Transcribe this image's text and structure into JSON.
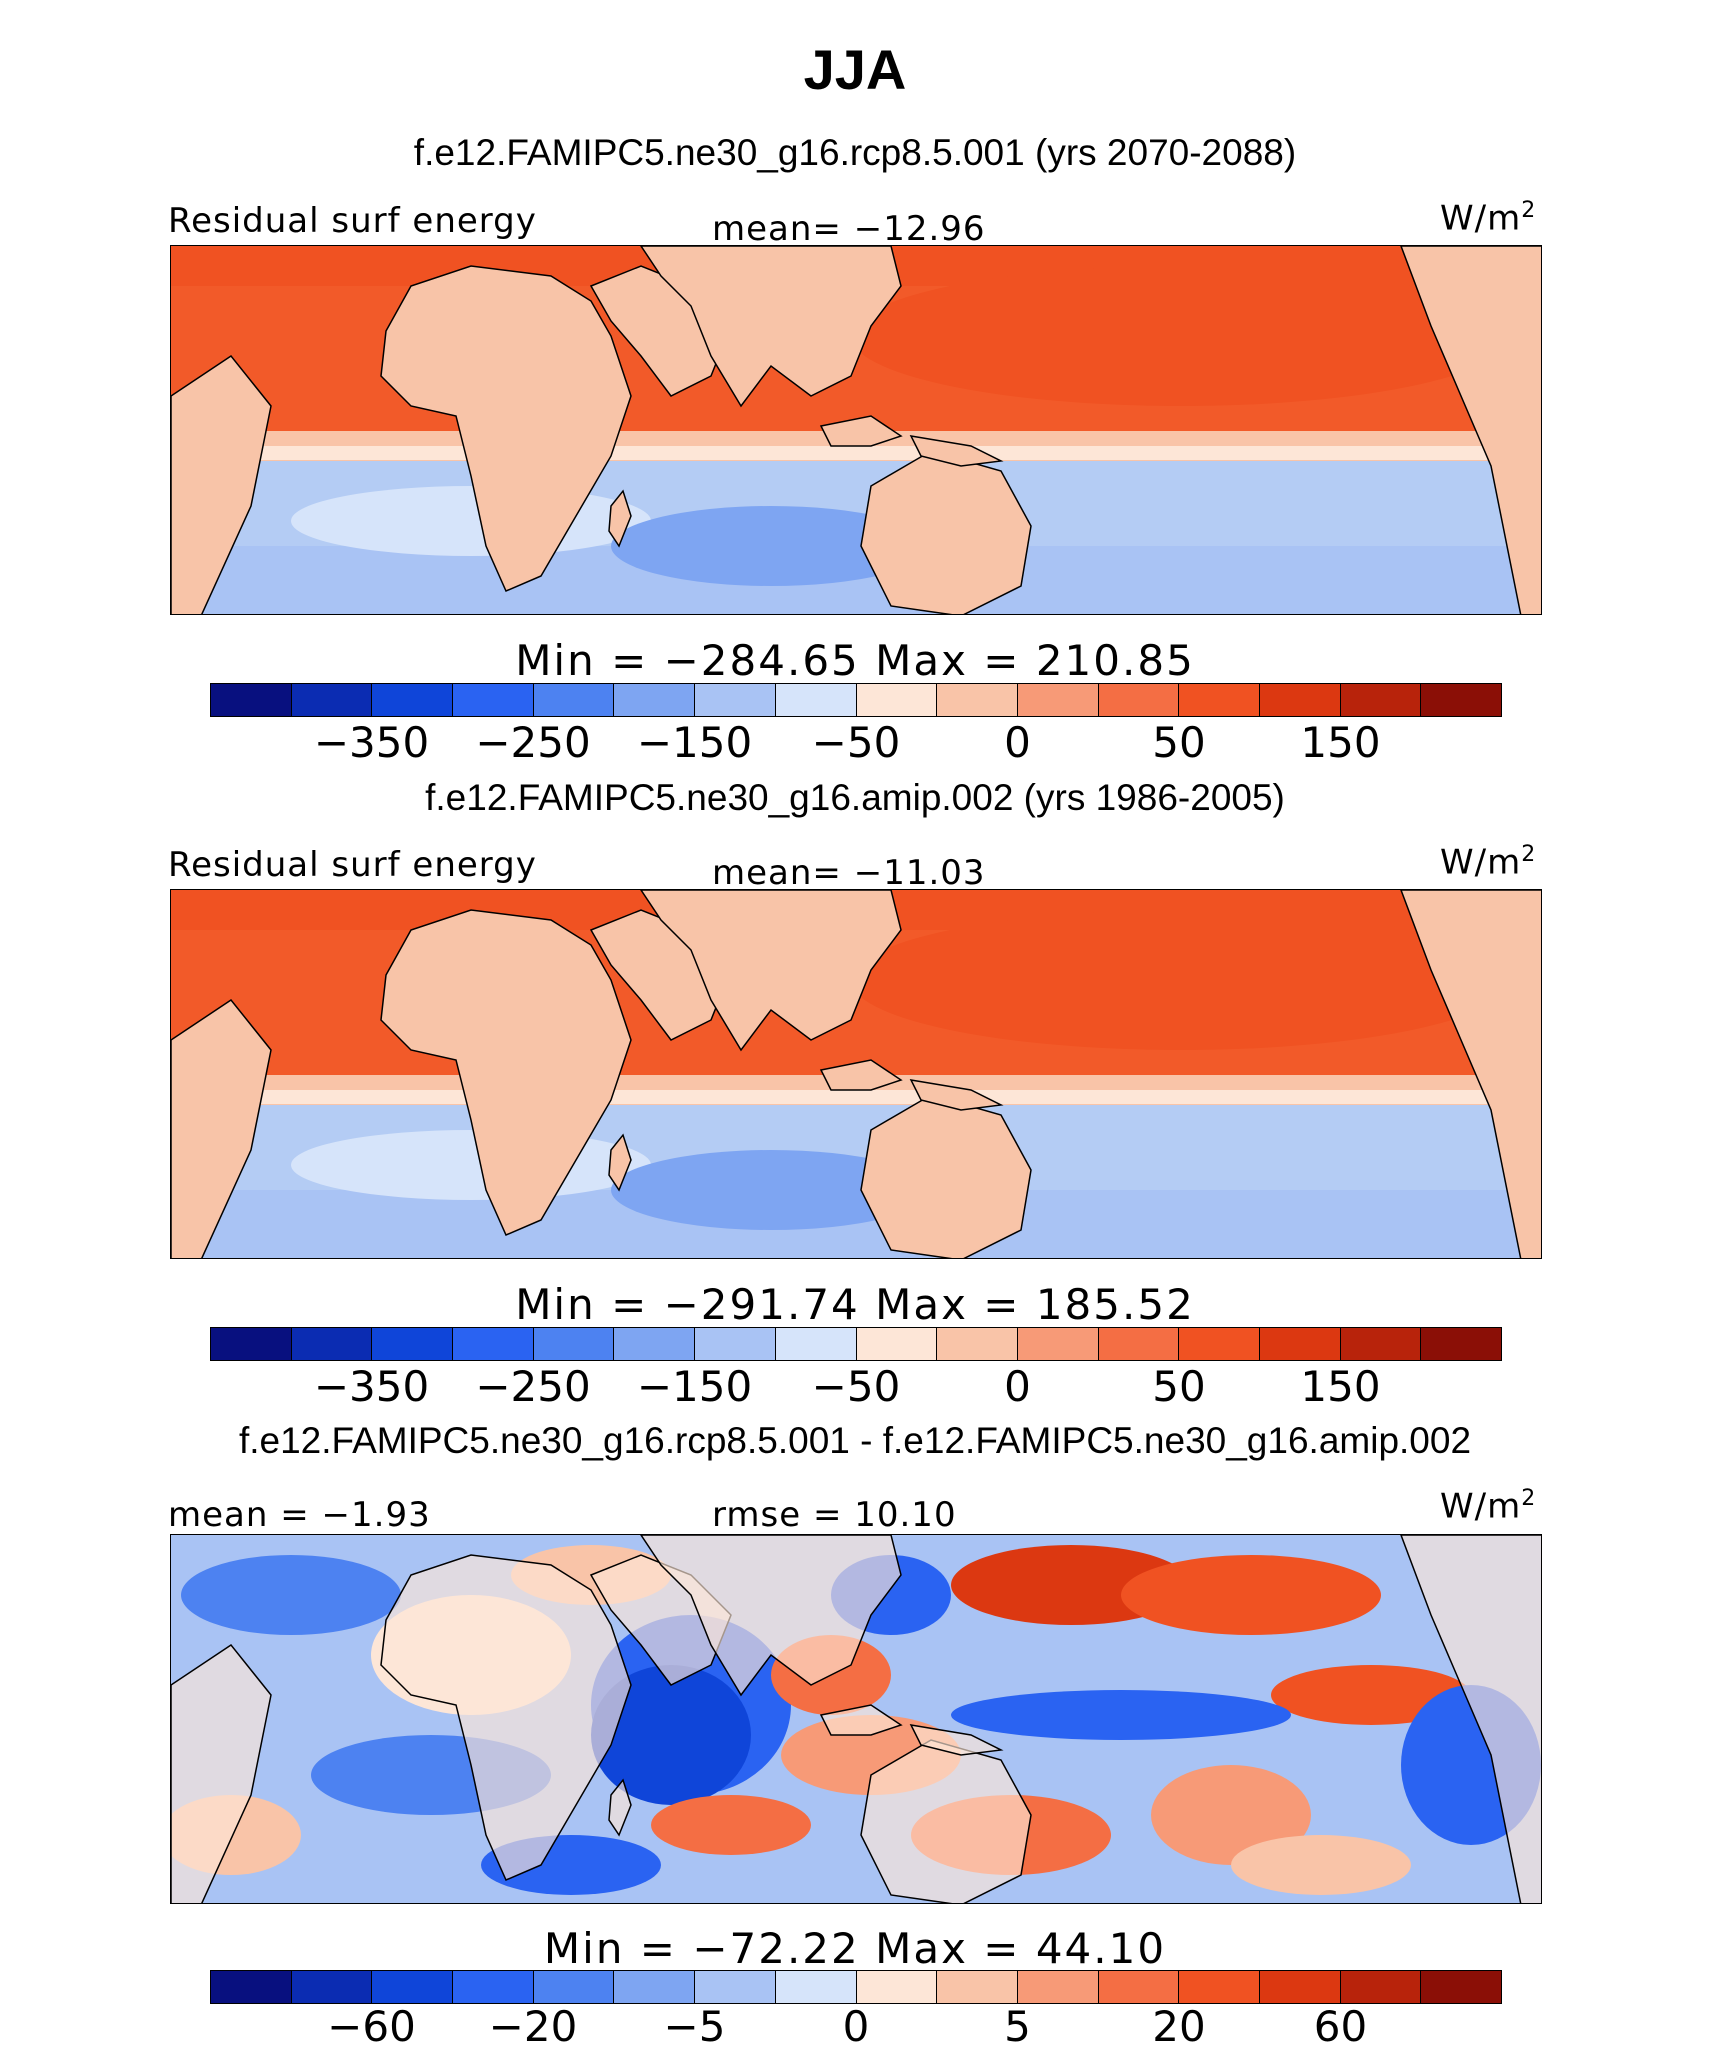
{
  "title": "JJA",
  "colors": {
    "bins": [
      "#08107f",
      "#0b2cb2",
      "#0f45d9",
      "#2a63f2",
      "#4d82f1",
      "#7ea5f2",
      "#a9c3f4",
      "#d6e4fa",
      "#fde6d7",
      "#f9c4a8",
      "#f79a77",
      "#f46e44",
      "#f05222",
      "#dc3811",
      "#b8230b",
      "#8b0f06"
    ],
    "land": "#f8c4a8",
    "ocean_warm": "#f25a29",
    "ocean_cool": "#b4ccf4"
  },
  "panels": [
    {
      "case": "f.e12.FAMIPC5.ne30_g16.rcp8.5.001 (yrs 2070-2088)",
      "left_label": "Residual surf energy",
      "center_label": "mean= −12.96",
      "unit": "W/m",
      "unit_sup": "2",
      "minmax": "Min = −284.65 Max = 210.85",
      "ticks": [
        "−350",
        "−250",
        "−150",
        "−50",
        "0",
        "50",
        "150"
      ]
    },
    {
      "case": "f.e12.FAMIPC5.ne30_g16.amip.002 (yrs 1986-2005)",
      "left_label": "Residual surf energy",
      "center_label": "mean= −11.03",
      "unit": "W/m",
      "unit_sup": "2",
      "minmax": "Min = −291.74 Max = 185.52",
      "ticks": [
        "−350",
        "−250",
        "−150",
        "−50",
        "0",
        "50",
        "150"
      ]
    },
    {
      "case": "f.e12.FAMIPC5.ne30_g16.rcp8.5.001 - f.e12.FAMIPC5.ne30_g16.amip.002",
      "left_label": "mean = −1.93",
      "center_label": "rmse = 10.10",
      "unit": "W/m",
      "unit_sup": "2",
      "minmax": "Min = −72.22 Max = 44.10",
      "ticks": [
        "−60",
        "−20",
        "−5",
        "0",
        "5",
        "20",
        "60"
      ]
    }
  ]
}
